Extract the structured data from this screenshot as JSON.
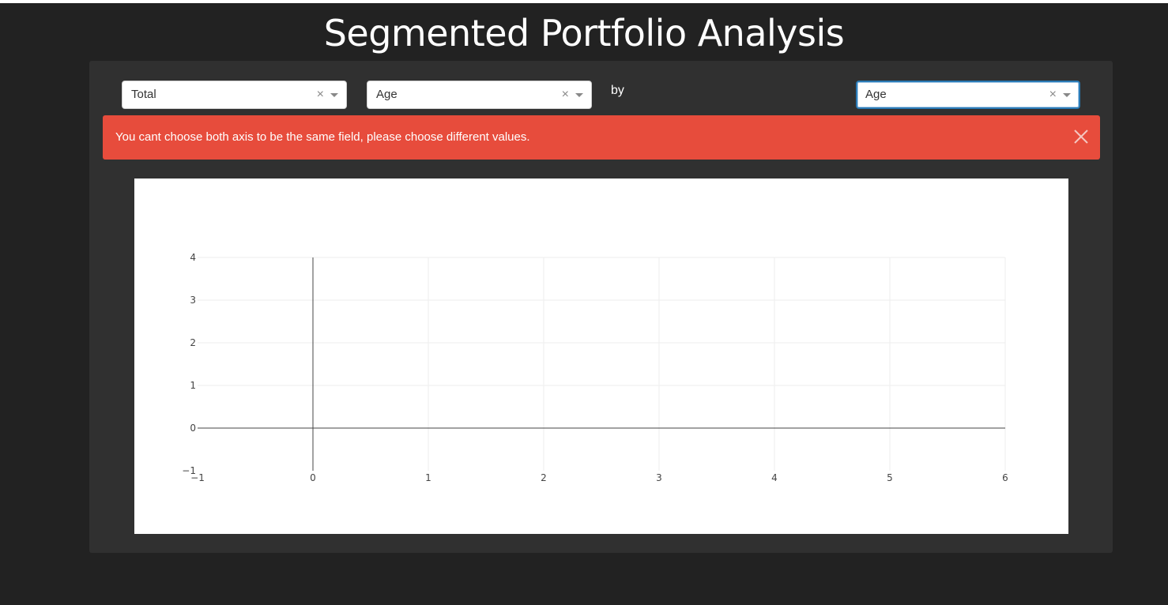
{
  "page": {
    "title": "Segmented Portfolio Analysis"
  },
  "controls": {
    "metric_dropdown": {
      "value": "Total"
    },
    "x_dropdown": {
      "value": "Age"
    },
    "by_label": "by",
    "y_dropdown": {
      "value": "Age"
    },
    "clear_glyph": "×"
  },
  "alert": {
    "message": "You cant choose both axis to be the same field, please choose different values.",
    "color": "#e74c3c"
  },
  "chart_data": {
    "type": "scatter",
    "series": [],
    "x_ticks": [
      "−1",
      "0",
      "1",
      "2",
      "3",
      "4",
      "5",
      "6"
    ],
    "y_ticks": [
      "−1",
      "0",
      "1",
      "2",
      "3",
      "4"
    ],
    "xlim": [
      -1,
      6
    ],
    "ylim": [
      -1,
      4
    ],
    "grid": true,
    "zero_lines": true
  }
}
